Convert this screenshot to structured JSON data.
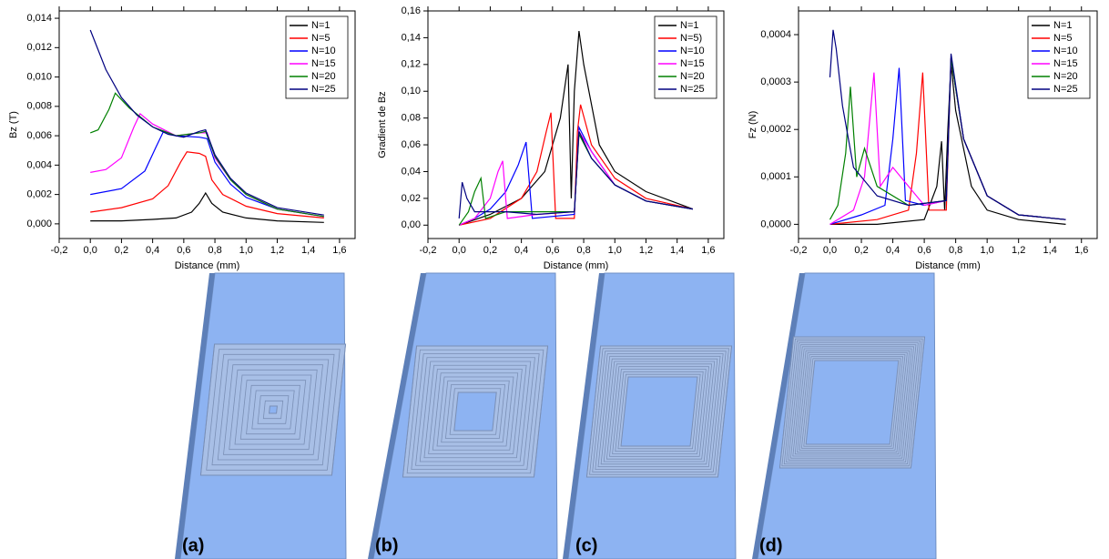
{
  "chart_data": [
    {
      "type": "line",
      "y_label": "Bz (T)",
      "x_label": "Distance (mm)",
      "xlim": [
        -0.2,
        1.7
      ],
      "ylim": [
        -0.001,
        0.0145
      ],
      "xticks": [
        {
          "value": -0.2,
          "label": "-0,2"
        },
        {
          "value": 0,
          "label": "0,0"
        },
        {
          "value": 0.2,
          "label": "0,2"
        },
        {
          "value": 0.4,
          "label": "0,4"
        },
        {
          "value": 0.6,
          "label": "0,6"
        },
        {
          "value": 0.8,
          "label": "0,8"
        },
        {
          "value": 1.0,
          "label": "1,0"
        },
        {
          "value": 1.2,
          "label": "1,2"
        },
        {
          "value": 1.4,
          "label": "1,4"
        },
        {
          "value": 1.6,
          "label": "1,6"
        }
      ],
      "yticks": [
        {
          "value": 0,
          "label": "0,000"
        },
        {
          "value": 0.002,
          "label": "0,002"
        },
        {
          "value": 0.004,
          "label": "0,004"
        },
        {
          "value": 0.006,
          "label": "0,006"
        },
        {
          "value": 0.008,
          "label": "0,008"
        },
        {
          "value": 0.01,
          "label": "0,010"
        },
        {
          "value": 0.012,
          "label": "0,012"
        },
        {
          "value": 0.014,
          "label": "0,014"
        }
      ],
      "legend": "upper right",
      "series": [
        {
          "name": "N=1",
          "color": "#000000",
          "x": [
            0,
            0.2,
            0.4,
            0.55,
            0.65,
            0.7,
            0.74,
            0.78,
            0.85,
            1.0,
            1.2,
            1.5
          ],
          "values": [
            0.0002,
            0.0002,
            0.0003,
            0.0004,
            0.0008,
            0.0014,
            0.0021,
            0.0014,
            0.0008,
            0.0004,
            0.0002,
            0.0001
          ]
        },
        {
          "name": "N=5",
          "color": "#ff0000",
          "x": [
            0,
            0.2,
            0.4,
            0.5,
            0.58,
            0.62,
            0.7,
            0.74,
            0.78,
            0.85,
            1.0,
            1.2,
            1.5
          ],
          "values": [
            0.0008,
            0.0011,
            0.0017,
            0.0026,
            0.0042,
            0.0049,
            0.0048,
            0.0046,
            0.003,
            0.002,
            0.0012,
            0.0007,
            0.0004
          ]
        },
        {
          "name": "N=10",
          "color": "#0000ff",
          "x": [
            0,
            0.2,
            0.35,
            0.42,
            0.47,
            0.55,
            0.7,
            0.75,
            0.8,
            0.9,
            1.0,
            1.2,
            1.5
          ],
          "values": [
            0.002,
            0.0024,
            0.0036,
            0.0052,
            0.0063,
            0.006,
            0.0059,
            0.0058,
            0.0042,
            0.0027,
            0.0018,
            0.001,
            0.0005
          ]
        },
        {
          "name": "N=15",
          "color": "#ff00ff",
          "x": [
            0,
            0.1,
            0.2,
            0.28,
            0.32,
            0.4,
            0.55,
            0.7,
            0.75,
            0.8,
            0.9,
            1.0,
            1.2,
            1.5
          ],
          "values": [
            0.0035,
            0.0037,
            0.0045,
            0.0066,
            0.0075,
            0.0068,
            0.006,
            0.0062,
            0.0062,
            0.0045,
            0.003,
            0.002,
            0.001,
            0.0005
          ]
        },
        {
          "name": "N=20",
          "color": "#008000",
          "x": [
            0,
            0.05,
            0.12,
            0.16,
            0.25,
            0.4,
            0.55,
            0.7,
            0.74,
            0.8,
            0.9,
            1.0,
            1.2,
            1.5
          ],
          "values": [
            0.0062,
            0.0064,
            0.0078,
            0.0089,
            0.0079,
            0.0066,
            0.006,
            0.0062,
            0.0063,
            0.0046,
            0.003,
            0.002,
            0.001,
            0.0005
          ]
        },
        {
          "name": "N=25",
          "color": "#000080",
          "x": [
            0,
            0.1,
            0.2,
            0.3,
            0.4,
            0.5,
            0.6,
            0.7,
            0.74,
            0.8,
            0.9,
            1.0,
            1.2,
            1.5
          ],
          "values": [
            0.0132,
            0.0105,
            0.0086,
            0.0074,
            0.0066,
            0.0061,
            0.0059,
            0.0063,
            0.0064,
            0.0047,
            0.0031,
            0.0021,
            0.0011,
            0.0006
          ]
        }
      ]
    },
    {
      "type": "line",
      "y_label": "Gradient de Bz",
      "x_label": "Distance (mm)",
      "xlim": [
        -0.2,
        1.7
      ],
      "ylim": [
        -0.01,
        0.16
      ],
      "xticks": [
        {
          "value": -0.2,
          "label": "-0,2"
        },
        {
          "value": 0,
          "label": "0,0"
        },
        {
          "value": 0.2,
          "label": "0,2"
        },
        {
          "value": 0.4,
          "label": "0,4"
        },
        {
          "value": 0.6,
          "label": "0,6"
        },
        {
          "value": 0.8,
          "label": "0,8"
        },
        {
          "value": 1.0,
          "label": "1,0"
        },
        {
          "value": 1.2,
          "label": "1,2"
        },
        {
          "value": 1.4,
          "label": "1,4"
        },
        {
          "value": 1.6,
          "label": "1,6"
        }
      ],
      "yticks": [
        {
          "value": 0,
          "label": "0,00"
        },
        {
          "value": 0.02,
          "label": "0,02"
        },
        {
          "value": 0.04,
          "label": "0,04"
        },
        {
          "value": 0.06,
          "label": "0,06"
        },
        {
          "value": 0.08,
          "label": "0,08"
        },
        {
          "value": 0.1,
          "label": "0,10"
        },
        {
          "value": 0.12,
          "label": "0,12"
        },
        {
          "value": 0.14,
          "label": "0,14"
        },
        {
          "value": 0.16,
          "label": "0,16"
        }
      ],
      "legend": "upper right",
      "series": [
        {
          "name": "N=1",
          "color": "#000000",
          "x": [
            0,
            0.2,
            0.4,
            0.55,
            0.65,
            0.7,
            0.72,
            0.74,
            0.77,
            0.8,
            0.9,
            1.0,
            1.2,
            1.5
          ],
          "values": [
            0,
            0.008,
            0.02,
            0.04,
            0.08,
            0.12,
            0.02,
            0.1,
            0.145,
            0.12,
            0.06,
            0.04,
            0.025,
            0.012
          ]
        },
        {
          "name": "N=5)",
          "color": "#ff0000",
          "x": [
            0,
            0.2,
            0.4,
            0.5,
            0.56,
            0.59,
            0.62,
            0.74,
            0.76,
            0.78,
            0.85,
            1.0,
            1.2,
            1.5
          ],
          "values": [
            0,
            0.005,
            0.02,
            0.04,
            0.07,
            0.084,
            0.005,
            0.005,
            0.07,
            0.09,
            0.06,
            0.035,
            0.02,
            0.012
          ]
        },
        {
          "name": "N=10",
          "color": "#0000ff",
          "x": [
            0,
            0.1,
            0.2,
            0.3,
            0.38,
            0.43,
            0.47,
            0.74,
            0.77,
            0.85,
            1.0,
            1.2,
            1.5
          ],
          "values": [
            0,
            0.005,
            0.012,
            0.025,
            0.045,
            0.062,
            0.005,
            0.008,
            0.073,
            0.055,
            0.03,
            0.018,
            0.012
          ]
        },
        {
          "name": "N=15",
          "color": "#ff00ff",
          "x": [
            0,
            0.1,
            0.2,
            0.25,
            0.28,
            0.31,
            0.5,
            0.74,
            0.77,
            0.85,
            1.0,
            1.2,
            1.5
          ],
          "values": [
            0,
            0.005,
            0.02,
            0.04,
            0.048,
            0.005,
            0.008,
            0.01,
            0.07,
            0.055,
            0.03,
            0.018,
            0.012
          ]
        },
        {
          "name": "N=20",
          "color": "#008000",
          "x": [
            0,
            0.06,
            0.1,
            0.14,
            0.17,
            0.3,
            0.74,
            0.77,
            0.85,
            1.0,
            1.2,
            1.5
          ],
          "values": [
            0,
            0.01,
            0.025,
            0.035,
            0.005,
            0.01,
            0.01,
            0.068,
            0.05,
            0.03,
            0.018,
            0.012
          ]
        },
        {
          "name": "N=25",
          "color": "#000080",
          "x": [
            0,
            0.02,
            0.05,
            0.1,
            0.3,
            0.5,
            0.74,
            0.77,
            0.85,
            1.0,
            1.2,
            1.5
          ],
          "values": [
            0.005,
            0.032,
            0.02,
            0.01,
            0.01,
            0.008,
            0.01,
            0.07,
            0.05,
            0.03,
            0.018,
            0.012
          ]
        }
      ]
    },
    {
      "type": "line",
      "y_label": "Fz (N)",
      "x_label": "Distance (mm)",
      "xlim": [
        -0.2,
        1.7
      ],
      "ylim": [
        -3e-05,
        0.00045
      ],
      "xticks": [
        {
          "value": -0.2,
          "label": "-0,2"
        },
        {
          "value": 0,
          "label": "0,0"
        },
        {
          "value": 0.2,
          "label": "0,2"
        },
        {
          "value": 0.4,
          "label": "0,4"
        },
        {
          "value": 0.6,
          "label": "0,6"
        },
        {
          "value": 0.8,
          "label": "0,8"
        },
        {
          "value": 1.0,
          "label": "1,0"
        },
        {
          "value": 1.2,
          "label": "1,2"
        },
        {
          "value": 1.4,
          "label": "1,4"
        },
        {
          "value": 1.6,
          "label": "1,6"
        }
      ],
      "yticks": [
        {
          "value": 0,
          "label": "0,0000"
        },
        {
          "value": 0.0001,
          "label": "0,0001"
        },
        {
          "value": 0.0002,
          "label": "0,0002"
        },
        {
          "value": 0.0003,
          "label": "0,0003"
        },
        {
          "value": 0.0004,
          "label": "0,0004"
        }
      ],
      "legend": "upper right",
      "series": [
        {
          "name": "N=1",
          "color": "#000000",
          "x": [
            0,
            0.3,
            0.6,
            0.68,
            0.71,
            0.73,
            0.75,
            0.77,
            0.8,
            0.9,
            1.0,
            1.2,
            1.5
          ],
          "values": [
            0,
            0,
            1e-05,
            8e-05,
            0.000175,
            3e-05,
            0.0002,
            0.00034,
            0.00024,
            8e-05,
            3e-05,
            1e-05,
            0
          ]
        },
        {
          "name": "N=5",
          "color": "#ff0000",
          "x": [
            0,
            0.3,
            0.5,
            0.55,
            0.59,
            0.63,
            0.74,
            0.77,
            0.85,
            1.0,
            1.2,
            1.5
          ],
          "values": [
            0,
            1e-05,
            3e-05,
            0.00015,
            0.00032,
            3e-05,
            3e-05,
            0.00035,
            0.00018,
            6e-05,
            2e-05,
            1e-05
          ]
        },
        {
          "name": "N=10",
          "color": "#0000ff",
          "x": [
            0,
            0.2,
            0.35,
            0.4,
            0.44,
            0.48,
            0.6,
            0.74,
            0.77,
            0.85,
            1.0,
            1.2,
            1.5
          ],
          "values": [
            0,
            2e-05,
            4e-05,
            0.00018,
            0.00033,
            5e-05,
            4e-05,
            5e-05,
            0.00035,
            0.00018,
            6e-05,
            2e-05,
            1e-05
          ]
        },
        {
          "name": "N=15",
          "color": "#ff00ff",
          "x": [
            0,
            0.15,
            0.22,
            0.28,
            0.32,
            0.4,
            0.6,
            0.74,
            0.77,
            0.85,
            1.0,
            1.2,
            1.5
          ],
          "values": [
            0,
            3e-05,
            0.0001,
            0.00032,
            8e-05,
            0.00012,
            4e-05,
            5e-05,
            0.00035,
            0.00018,
            6e-05,
            2e-05,
            1e-05
          ]
        },
        {
          "name": "N=20",
          "color": "#008000",
          "x": [
            0,
            0.05,
            0.1,
            0.13,
            0.17,
            0.22,
            0.3,
            0.5,
            0.74,
            0.77,
            0.85,
            1.0,
            1.2,
            1.5
          ],
          "values": [
            1e-05,
            4e-05,
            0.00015,
            0.00029,
            0.0001,
            0.00016,
            8e-05,
            4e-05,
            5e-05,
            0.00035,
            0.00018,
            6e-05,
            2e-05,
            1e-05
          ]
        },
        {
          "name": "N=25",
          "color": "#000080",
          "x": [
            0,
            0.02,
            0.04,
            0.08,
            0.15,
            0.3,
            0.5,
            0.74,
            0.77,
            0.85,
            1.0,
            1.2,
            1.5
          ],
          "values": [
            0.00031,
            0.00041,
            0.00037,
            0.00025,
            0.00012,
            6e-05,
            4e-05,
            5e-05,
            0.00036,
            0.00018,
            6e-05,
            2e-05,
            1e-05
          ]
        }
      ]
    }
  ],
  "panel_labels": [
    "(a)",
    "(b)",
    "(c)",
    "(d)"
  ]
}
